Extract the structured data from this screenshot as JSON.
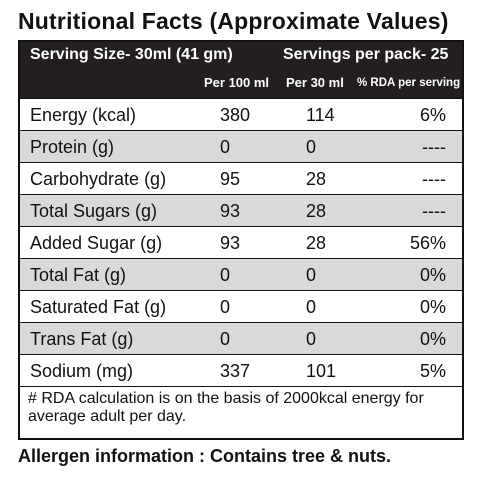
{
  "title": "Nutritional Facts (Approximate Values)",
  "header": {
    "serving_size": "Serving Size-  30ml (41 gm)",
    "servings_per_pack": "Servings per pack- 25",
    "columns": [
      "Per 100 ml",
      "Per 30 ml",
      "% RDA per serving"
    ]
  },
  "rows": [
    {
      "name": "Energy (kcal)",
      "per_100ml": "380",
      "per_30ml": "114",
      "rda": "6%"
    },
    {
      "name": "Protein (g)",
      "per_100ml": "0",
      "per_30ml": "0",
      "rda": "----"
    },
    {
      "name": "Carbohydrate (g)",
      "per_100ml": "95",
      "per_30ml": "28",
      "rda": "----"
    },
    {
      "name": "Total Sugars (g)",
      "per_100ml": "93",
      "per_30ml": "28",
      "rda": "----"
    },
    {
      "name": "Added Sugar (g)",
      "per_100ml": "93",
      "per_30ml": "28",
      "rda": "56%"
    },
    {
      "name": "Total Fat (g)",
      "per_100ml": "0",
      "per_30ml": "0",
      "rda": "0%"
    },
    {
      "name": "Saturated Fat (g)",
      "per_100ml": "0",
      "per_30ml": "0",
      "rda": "0%"
    },
    {
      "name": "Trans Fat (g)",
      "per_100ml": "0",
      "per_30ml": "0",
      "rda": "0%"
    },
    {
      "name": "Sodium (mg)",
      "per_100ml": "337",
      "per_30ml": "101",
      "rda": "5%"
    }
  ],
  "footnote": "# RDA calculation is on the basis of 2000kcal energy for average adult per day.",
  "allergen": "Allergen information : Contains tree & nuts.",
  "colors": {
    "header_bg": "#231f20",
    "shaded_row": "#d9d9d9",
    "text": "#111111"
  }
}
